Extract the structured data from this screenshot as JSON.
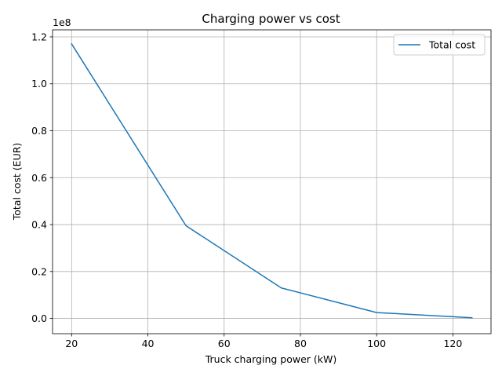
{
  "chart_data": {
    "type": "line",
    "title": "Charging power vs cost",
    "xlabel": "Truck charging power (kW)",
    "ylabel": "Total cost (EUR)",
    "y_offset_label": "1e8",
    "xlim": [
      15,
      130
    ],
    "ylim": [
      -0.065,
      1.23
    ],
    "y_scale_factor": 100000000,
    "xticks": [
      20,
      40,
      60,
      80,
      100,
      120
    ],
    "xtick_labels": [
      "20",
      "40",
      "60",
      "80",
      "100",
      "120"
    ],
    "yticks": [
      0.0,
      0.2,
      0.4,
      0.6,
      0.8,
      1.0,
      1.2
    ],
    "ytick_labels": [
      "0.0",
      "0.2",
      "0.4",
      "0.6",
      "0.8",
      "1.0",
      "1.2"
    ],
    "grid": true,
    "legend": "upper right",
    "series": [
      {
        "name": "Total cost",
        "color": "#1f77b4",
        "x": [
          20,
          50,
          75,
          100,
          125
        ],
        "y": [
          117000000,
          39500000,
          13000000,
          2500000,
          300000
        ]
      }
    ]
  }
}
